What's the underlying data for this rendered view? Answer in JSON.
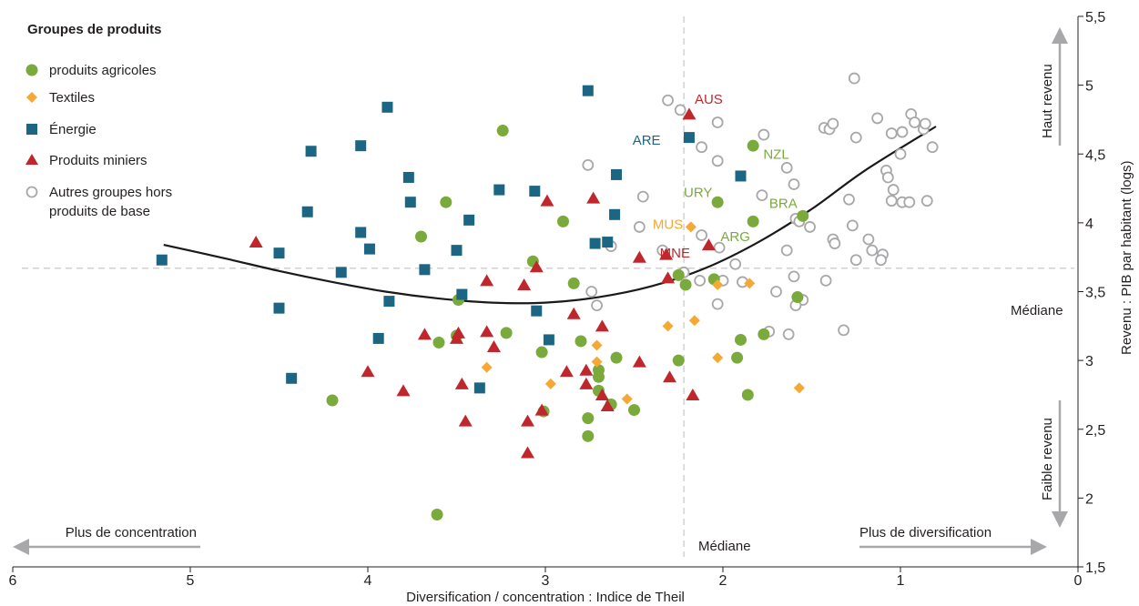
{
  "colors": {
    "agri": "#7aaa3c",
    "textile": "#f5a834",
    "energy": "#1c6683",
    "mining": "#c0272d",
    "other": "#a8a8aa",
    "grid": "#cccccc",
    "arrow": "#a8a8aa",
    "curve": "#1a1a1a"
  },
  "chart_data": {
    "type": "scatter",
    "xlabel": "Diversification / concentration : Indice de Theil",
    "ylabel": "Revenu : PIB par habitant (logs)",
    "xlim": [
      6,
      0
    ],
    "ylim": [
      1.5,
      5.5
    ],
    "x_reversed": true,
    "x_ticks": [
      "6",
      "5",
      "4",
      "3",
      "2",
      "1",
      "0"
    ],
    "x_tick_values": [
      6,
      5,
      4,
      3,
      2,
      1,
      0
    ],
    "y_ticks": [
      "1,5",
      "2",
      "2,5",
      "3",
      "3,5",
      "4",
      "4,5",
      "5",
      "5,5"
    ],
    "y_tick_values": [
      1.5,
      2,
      2.5,
      3,
      3.5,
      4,
      4.5,
      5,
      5.5
    ],
    "median_x": 2.22,
    "median_y": 3.67,
    "median_label_x": "Médiane",
    "median_label_y": "Médiane",
    "legend": {
      "title": "Groupes de produits",
      "placement": "top-left"
    },
    "annotations": {
      "left_arrow": "Plus de concentration",
      "right_arrow": "Plus de diversification",
      "top_arrow": "Haut revenu",
      "bottom_arrow": "Faible revenu"
    },
    "series": [
      {
        "name": "produits agricoles",
        "marker": "circle",
        "color_key": "agri",
        "points": [
          [
            3.24,
            4.67
          ],
          [
            3.56,
            4.15
          ],
          [
            2.9,
            4.01
          ],
          [
            3.7,
            3.9
          ],
          [
            3.07,
            3.72
          ],
          [
            2.84,
            3.56
          ],
          [
            3.49,
            3.44
          ],
          [
            2.25,
            3.62
          ],
          [
            2.05,
            3.59
          ],
          [
            2.21,
            3.55
          ],
          [
            1.55,
            4.05
          ],
          [
            1.83,
            4.01
          ],
          [
            1.83,
            4.56
          ],
          [
            2.03,
            4.15
          ],
          [
            1.58,
            3.46
          ],
          [
            3.22,
            3.2
          ],
          [
            2.8,
            3.14
          ],
          [
            3.5,
            3.18
          ],
          [
            3.6,
            3.13
          ],
          [
            3.02,
            3.06
          ],
          [
            2.6,
            3.02
          ],
          [
            2.25,
            3.0
          ],
          [
            1.92,
            3.02
          ],
          [
            1.9,
            3.15
          ],
          [
            1.77,
            3.19
          ],
          [
            2.7,
            2.93
          ],
          [
            2.7,
            2.88
          ],
          [
            2.7,
            2.78
          ],
          [
            2.63,
            2.68
          ],
          [
            2.5,
            2.64
          ],
          [
            2.76,
            2.58
          ],
          [
            3.01,
            2.63
          ],
          [
            2.76,
            2.45
          ],
          [
            4.2,
            2.71
          ],
          [
            1.86,
            2.75
          ],
          [
            3.61,
            1.88
          ]
        ]
      },
      {
        "name": "Textiles",
        "marker": "diamond",
        "color_key": "textile",
        "points": [
          [
            2.18,
            3.97
          ],
          [
            2.03,
            3.55
          ],
          [
            1.85,
            3.56
          ],
          [
            2.31,
            3.25
          ],
          [
            2.16,
            3.29
          ],
          [
            2.71,
            3.11
          ],
          [
            2.71,
            2.99
          ],
          [
            2.97,
            2.83
          ],
          [
            2.03,
            3.02
          ],
          [
            3.33,
            2.95
          ],
          [
            2.54,
            2.72
          ],
          [
            1.57,
            2.8
          ]
        ]
      },
      {
        "name": "Énergie",
        "marker": "square",
        "color_key": "energy",
        "points": [
          [
            2.76,
            4.96
          ],
          [
            3.89,
            4.84
          ],
          [
            2.19,
            4.62
          ],
          [
            4.32,
            4.52
          ],
          [
            4.04,
            4.56
          ],
          [
            3.77,
            4.33
          ],
          [
            3.76,
            4.15
          ],
          [
            3.26,
            4.24
          ],
          [
            3.06,
            4.23
          ],
          [
            2.6,
            4.35
          ],
          [
            1.9,
            4.34
          ],
          [
            4.34,
            4.08
          ],
          [
            3.43,
            4.02
          ],
          [
            2.61,
            4.06
          ],
          [
            4.04,
            3.93
          ],
          [
            3.99,
            3.81
          ],
          [
            3.5,
            3.8
          ],
          [
            2.72,
            3.85
          ],
          [
            2.65,
            3.86
          ],
          [
            4.5,
            3.78
          ],
          [
            5.16,
            3.73
          ],
          [
            3.68,
            3.66
          ],
          [
            4.15,
            3.64
          ],
          [
            3.88,
            3.43
          ],
          [
            3.47,
            3.48
          ],
          [
            3.05,
            3.36
          ],
          [
            4.5,
            3.38
          ],
          [
            3.94,
            3.16
          ],
          [
            2.98,
            3.15
          ],
          [
            4.43,
            2.87
          ],
          [
            3.37,
            2.8
          ]
        ]
      },
      {
        "name": "Produits miniers",
        "marker": "triangle",
        "color_key": "mining",
        "points": [
          [
            2.19,
            4.79
          ],
          [
            2.73,
            4.18
          ],
          [
            2.99,
            4.16
          ],
          [
            4.63,
            3.86
          ],
          [
            2.08,
            3.84
          ],
          [
            2.47,
            3.75
          ],
          [
            2.32,
            3.77
          ],
          [
            3.05,
            3.68
          ],
          [
            3.33,
            3.58
          ],
          [
            3.12,
            3.55
          ],
          [
            2.31,
            3.6
          ],
          [
            2.84,
            3.34
          ],
          [
            3.68,
            3.19
          ],
          [
            3.49,
            3.2
          ],
          [
            3.33,
            3.21
          ],
          [
            3.5,
            3.16
          ],
          [
            3.29,
            3.1
          ],
          [
            2.68,
            3.25
          ],
          [
            2.47,
            2.99
          ],
          [
            2.77,
            2.93
          ],
          [
            3.02,
            2.64
          ],
          [
            2.88,
            2.92
          ],
          [
            2.3,
            2.88
          ],
          [
            4.0,
            2.92
          ],
          [
            3.8,
            2.78
          ],
          [
            3.47,
            2.83
          ],
          [
            2.77,
            2.83
          ],
          [
            2.68,
            2.75
          ],
          [
            2.65,
            2.67
          ],
          [
            2.17,
            2.75
          ],
          [
            3.45,
            2.56
          ],
          [
            3.1,
            2.56
          ],
          [
            3.1,
            2.33
          ]
        ]
      },
      {
        "name": "Autres groupes hors produits de base",
        "marker": "ring",
        "color_key": "other",
        "points": [
          [
            2.31,
            4.89
          ],
          [
            2.24,
            4.82
          ],
          [
            2.03,
            4.73
          ],
          [
            2.12,
            4.55
          ],
          [
            2.03,
            4.45
          ],
          [
            1.77,
            4.64
          ],
          [
            2.76,
            4.42
          ],
          [
            1.64,
            4.4
          ],
          [
            1.6,
            4.28
          ],
          [
            1.43,
            4.69
          ],
          [
            1.4,
            4.68
          ],
          [
            1.38,
            4.72
          ],
          [
            1.26,
            5.05
          ],
          [
            1.25,
            4.62
          ],
          [
            1.13,
            4.76
          ],
          [
            1.05,
            4.65
          ],
          [
            0.99,
            4.66
          ],
          [
            0.94,
            4.79
          ],
          [
            0.92,
            4.73
          ],
          [
            0.87,
            4.68
          ],
          [
            0.86,
            4.72
          ],
          [
            0.82,
            4.55
          ],
          [
            1.0,
            4.5
          ],
          [
            1.08,
            4.38
          ],
          [
            1.07,
            4.33
          ],
          [
            1.04,
            4.24
          ],
          [
            1.05,
            4.16
          ],
          [
            0.99,
            4.15
          ],
          [
            0.95,
            4.15
          ],
          [
            0.85,
            4.16
          ],
          [
            1.29,
            4.17
          ],
          [
            1.27,
            3.98
          ],
          [
            1.18,
            3.88
          ],
          [
            1.16,
            3.8
          ],
          [
            1.1,
            3.77
          ],
          [
            1.11,
            3.73
          ],
          [
            1.25,
            3.73
          ],
          [
            1.38,
            3.88
          ],
          [
            1.37,
            3.85
          ],
          [
            1.51,
            3.97
          ],
          [
            1.59,
            4.03
          ],
          [
            1.57,
            4.01
          ],
          [
            1.64,
            3.8
          ],
          [
            1.78,
            4.2
          ],
          [
            2.45,
            4.19
          ],
          [
            2.47,
            3.97
          ],
          [
            2.02,
            3.82
          ],
          [
            2.12,
            3.91
          ],
          [
            1.93,
            3.7
          ],
          [
            2.34,
            3.8
          ],
          [
            2.22,
            3.64
          ],
          [
            2.0,
            3.58
          ],
          [
            2.13,
            3.58
          ],
          [
            1.89,
            3.57
          ],
          [
            1.7,
            3.5
          ],
          [
            1.6,
            3.61
          ],
          [
            1.55,
            3.44
          ],
          [
            1.59,
            3.4
          ],
          [
            2.03,
            3.41
          ],
          [
            1.42,
            3.58
          ],
          [
            1.32,
            3.22
          ],
          [
            1.74,
            3.21
          ],
          [
            1.63,
            3.19
          ],
          [
            2.74,
            3.5
          ],
          [
            2.71,
            3.4
          ],
          [
            2.63,
            3.83
          ]
        ]
      }
    ],
    "country_labels": [
      {
        "text": "AUS",
        "x": 2.08,
        "y": 4.9,
        "color_key": "mining"
      },
      {
        "text": "ARE",
        "x": 2.43,
        "y": 4.6,
        "color_key": "energy"
      },
      {
        "text": "NZL",
        "x": 1.7,
        "y": 4.5,
        "color_key": "agri"
      },
      {
        "text": "URY",
        "x": 2.14,
        "y": 4.22,
        "color_key": "agri"
      },
      {
        "text": "BRA",
        "x": 1.66,
        "y": 4.14,
        "color_key": "agri"
      },
      {
        "text": "MUS",
        "x": 2.31,
        "y": 3.99,
        "color_key": "textile"
      },
      {
        "text": "ARG",
        "x": 1.93,
        "y": 3.9,
        "color_key": "agri"
      },
      {
        "text": "MNE",
        "x": 2.27,
        "y": 3.78,
        "color_key": "mining"
      }
    ],
    "trend_line": {
      "x": [
        5.15,
        4.8,
        4.5,
        4.2,
        3.9,
        3.6,
        3.3,
        3.0,
        2.7,
        2.4,
        2.1,
        1.8,
        1.5,
        1.2,
        0.8
      ],
      "y": [
        3.84,
        3.74,
        3.65,
        3.57,
        3.5,
        3.45,
        3.42,
        3.42,
        3.46,
        3.54,
        3.67,
        3.86,
        4.1,
        4.38,
        4.7
      ]
    }
  }
}
